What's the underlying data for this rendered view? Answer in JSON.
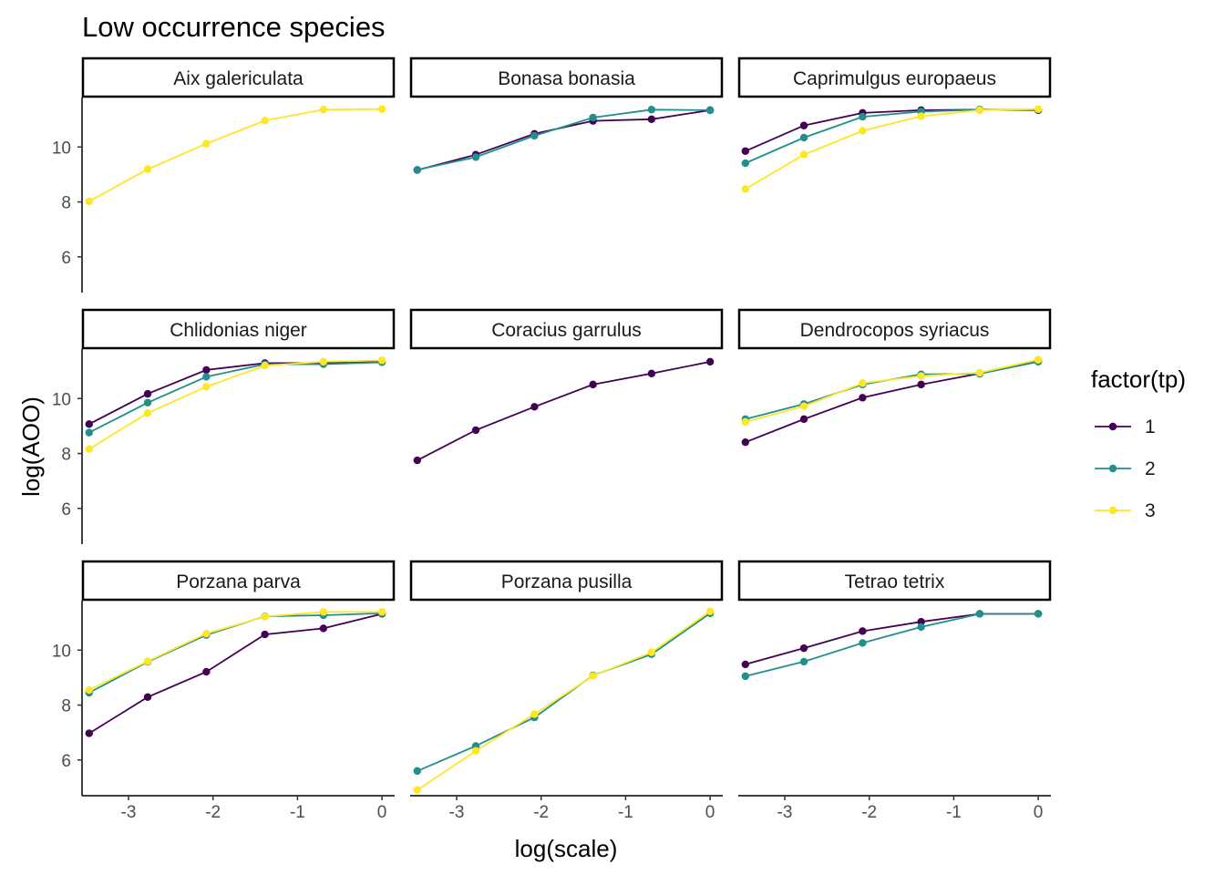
{
  "chart_data": {
    "type": "line",
    "title": "Low occurrence species",
    "xlabel": "log(scale)",
    "ylabel": "log(AOO)",
    "xlim": [
      -3.55,
      0.15
    ],
    "ylim": [
      4.7,
      11.8
    ],
    "x_ticks": [
      -3,
      -2,
      -1,
      0
    ],
    "x_tick_labels": [
      "-3",
      "-2",
      "-1",
      "0"
    ],
    "y_ticks": [
      6,
      8,
      10
    ],
    "y_tick_labels": [
      "6",
      "8",
      "10"
    ],
    "grid": false,
    "legend": {
      "title": "factor(tp)",
      "position": "right",
      "entries": [
        {
          "label": "1",
          "color": "#440154"
        },
        {
          "label": "2",
          "color": "#21908C"
        },
        {
          "label": "3",
          "color": "#FDE725"
        }
      ]
    },
    "x": [
      -3.466,
      -2.773,
      -2.079,
      -1.386,
      -0.693,
      0
    ],
    "panels": [
      {
        "name": "Aix galericulata",
        "series": [
          {
            "tp": "3",
            "values": [
              8.02,
              9.19,
              10.12,
              10.96,
              11.36,
              11.38
            ]
          }
        ]
      },
      {
        "name": "Bonasa bonasia",
        "series": [
          {
            "tp": "1",
            "values": [
              9.16,
              9.72,
              10.48,
              10.95,
              11.01,
              11.34
            ]
          },
          {
            "tp": "2",
            "values": [
              9.17,
              9.63,
              10.41,
              11.07,
              11.36,
              11.34
            ]
          }
        ]
      },
      {
        "name": "Caprimulgus europaeus",
        "series": [
          {
            "tp": "1",
            "values": [
              9.85,
              10.78,
              11.24,
              11.34,
              11.36,
              11.34
            ]
          },
          {
            "tp": "2",
            "values": [
              9.41,
              10.34,
              11.1,
              11.29,
              11.36,
              11.36
            ]
          },
          {
            "tp": "3",
            "values": [
              8.47,
              9.72,
              10.59,
              11.12,
              11.34,
              11.38
            ]
          }
        ]
      },
      {
        "name": "Chlidonias niger",
        "series": [
          {
            "tp": "1",
            "values": [
              9.07,
              10.17,
              11.04,
              11.29,
              11.29,
              11.34
            ]
          },
          {
            "tp": "2",
            "values": [
              8.76,
              9.85,
              10.79,
              11.25,
              11.25,
              11.32
            ]
          },
          {
            "tp": "3",
            "values": [
              8.16,
              9.47,
              10.43,
              11.2,
              11.34,
              11.39
            ]
          }
        ]
      },
      {
        "name": "Coracius garrulus",
        "series": [
          {
            "tp": "1",
            "values": [
              7.75,
              8.85,
              9.7,
              10.51,
              10.91,
              11.34
            ]
          }
        ]
      },
      {
        "name": "Dendrocopos syriacus",
        "series": [
          {
            "tp": "1",
            "values": [
              8.41,
              9.25,
              10.03,
              10.51,
              10.91,
              11.36
            ]
          },
          {
            "tp": "2",
            "values": [
              9.25,
              9.8,
              10.51,
              10.88,
              10.9,
              11.34
            ]
          },
          {
            "tp": "3",
            "values": [
              9.15,
              9.72,
              10.56,
              10.82,
              10.94,
              11.41
            ]
          }
        ]
      },
      {
        "name": "Porzana parva",
        "series": [
          {
            "tp": "1",
            "values": [
              6.97,
              8.29,
              9.21,
              10.57,
              10.79,
              11.32
            ]
          },
          {
            "tp": "2",
            "values": [
              8.45,
              9.57,
              10.55,
              11.23,
              11.27,
              11.34
            ]
          },
          {
            "tp": "3",
            "values": [
              8.55,
              9.59,
              10.6,
              11.22,
              11.39,
              11.39
            ]
          }
        ]
      },
      {
        "name": "Porzana pusilla",
        "series": [
          {
            "tp": "2",
            "values": [
              5.6,
              6.51,
              7.55,
              9.08,
              9.85,
              11.34
            ]
          },
          {
            "tp": "3",
            "values": [
              4.91,
              6.33,
              7.67,
              9.06,
              9.92,
              11.41
            ]
          }
        ]
      },
      {
        "name": "Tetrao tetrix",
        "series": [
          {
            "tp": "1",
            "values": [
              9.48,
              10.07,
              10.69,
              11.03,
              11.32,
              11.32
            ]
          },
          {
            "tp": "2",
            "values": [
              9.05,
              9.58,
              10.26,
              10.84,
              11.32,
              11.32
            ]
          }
        ]
      }
    ]
  }
}
